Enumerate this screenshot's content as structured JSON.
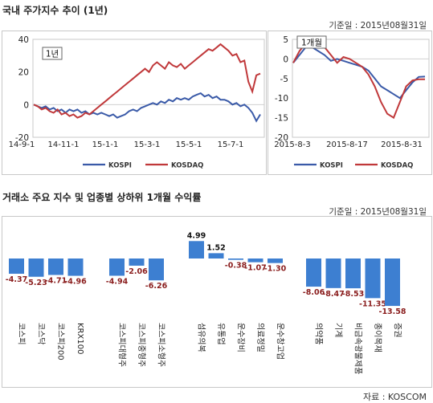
{
  "section1": {
    "title": "국내 주가지수 추이 (1년)",
    "basis": "기준일 : 2015년08월31일"
  },
  "section2": {
    "title": "거래소 주요 지수 및 업종별 상하위 1개월 수익률",
    "basis": "기준일 : 2015년08월31일"
  },
  "source": "자료 : KOSCOM",
  "chart_data": [
    {
      "type": "line",
      "tag": "1년",
      "ylim": [
        -20,
        40
      ],
      "yticks": [
        "40",
        "20",
        "0",
        "-20"
      ],
      "yticks_values": [
        40,
        20,
        0,
        -20
      ],
      "xticks": [
        "14-9-1",
        "14-11-1",
        "15-1-1",
        "15-3-1",
        "15-5-1",
        "15-7-1"
      ],
      "legend": "bottom",
      "grid": false,
      "series": [
        {
          "name": "KOSPI",
          "color": "#3a5aa8",
          "values": [
            0,
            -1,
            -2,
            -1,
            -3,
            -2,
            -4,
            -3,
            -5,
            -3,
            -4,
            -3,
            -5,
            -4,
            -6,
            -5,
            -6,
            -5,
            -6,
            -7,
            -6,
            -8,
            -7,
            -6,
            -4,
            -3,
            -4,
            -2,
            -1,
            0,
            1,
            0,
            2,
            1,
            3,
            2,
            4,
            3,
            4,
            3,
            5,
            6,
            7,
            5,
            6,
            4,
            5,
            3,
            3,
            2,
            0,
            1,
            -1,
            0,
            -2,
            -5,
            -10,
            -6
          ]
        },
        {
          "name": "KOSDAQ",
          "color": "#c0383a",
          "values": [
            0,
            -1,
            -3,
            -2,
            -4,
            -5,
            -3,
            -6,
            -5,
            -7,
            -6,
            -8,
            -7,
            -5,
            -6,
            -4,
            -2,
            0,
            2,
            4,
            6,
            8,
            10,
            12,
            14,
            16,
            18,
            20,
            22,
            20,
            24,
            26,
            24,
            22,
            26,
            24,
            23,
            25,
            22,
            24,
            26,
            28,
            30,
            32,
            34,
            33,
            35,
            37,
            35,
            33,
            30,
            31,
            26,
            27,
            14,
            8,
            18,
            19
          ]
        }
      ]
    },
    {
      "type": "line",
      "tag": "1개월",
      "ylim": [
        -20,
        5
      ],
      "yticks": [
        "5",
        "0",
        "-5",
        "-10",
        "-15",
        "-20"
      ],
      "yticks_values": [
        5,
        0,
        -5,
        -10,
        -15,
        -20
      ],
      "xticks": [
        "2015-8-3",
        "2015-8-17",
        "2015-8-31"
      ],
      "legend": "bottom",
      "grid": false,
      "series": [
        {
          "name": "KOSPI",
          "color": "#3a5aa8",
          "values": [
            -1,
            1,
            3,
            3,
            2,
            1,
            -0.5,
            0,
            -0.5,
            -1,
            -1.5,
            -2,
            -3,
            -5,
            -7,
            -8,
            -9,
            -10,
            -8,
            -6,
            -4.6,
            -4.5
          ]
        },
        {
          "name": "KOSDAQ",
          "color": "#c0383a",
          "values": [
            -1,
            2,
            4,
            5,
            4,
            3,
            1,
            -1,
            0.5,
            0,
            -1,
            -2,
            -4,
            -7,
            -11,
            -14,
            -15,
            -11,
            -7,
            -5.5,
            -5.2,
            -5.2
          ]
        }
      ]
    },
    {
      "type": "bar",
      "grid": false,
      "groups": [
        {
          "categories": [
            "코스피",
            "코스닥",
            "코스피200",
            "KRX100"
          ],
          "values": [
            -4.37,
            -5.23,
            -4.71,
            -4.96
          ]
        },
        {
          "categories": [
            "코스피대형주",
            "코스피중형주",
            "코스피소형주"
          ],
          "values": [
            -4.94,
            -2.06,
            -6.26
          ]
        },
        {
          "categories": [
            "섬유의복",
            "유통업",
            "운수장비",
            "의료정밀",
            "운수창고업"
          ],
          "values": [
            4.99,
            1.52,
            -0.38,
            -1.07,
            -1.3
          ]
        },
        {
          "categories": [
            "의약품",
            "기계",
            "비금속광물제품",
            "종이목재",
            "증권"
          ],
          "values": [
            -8.06,
            -8.47,
            -8.53,
            -11.35,
            -13.58
          ]
        }
      ],
      "value_labels": [
        [
          "-4.37",
          "-5.23",
          "-4.71",
          "-4.96"
        ],
        [
          "-4.94",
          "-2.06",
          "-6.26"
        ],
        [
          "4.99",
          "1.52",
          "-0.38",
          "-1.07",
          "-1.30"
        ],
        [
          "-8.06",
          "-8.47",
          "-8.53",
          "-11.35",
          "-13.58"
        ]
      ],
      "colors": {
        "bar": "#3d7fd1",
        "positive_label": "#111111",
        "negative_label": "#8a1d1d"
      }
    }
  ]
}
